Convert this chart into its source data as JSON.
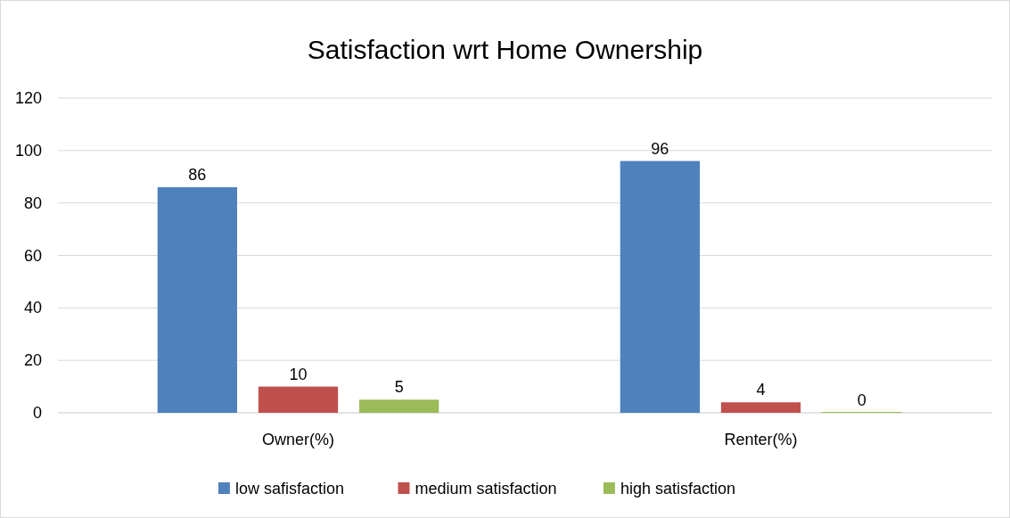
{
  "chart_data": {
    "type": "bar",
    "title": "Satisfaction wrt Home Ownership",
    "categories": [
      "Owner(%)",
      "Renter(%)"
    ],
    "series": [
      {
        "name": "low safisfaction",
        "color": "#4f81bd",
        "values": [
          86,
          96
        ]
      },
      {
        "name": "medium satisfaction",
        "color": "#c0504d",
        "values": [
          10,
          4
        ]
      },
      {
        "name": "high satisfaction",
        "color": "#9bbb59",
        "values": [
          5,
          0
        ]
      }
    ],
    "ylim": [
      0,
      120
    ],
    "yticks": [
      0,
      20,
      40,
      60,
      80,
      100,
      120
    ],
    "grid": "y",
    "legend": "bottom",
    "data_labels": true
  }
}
